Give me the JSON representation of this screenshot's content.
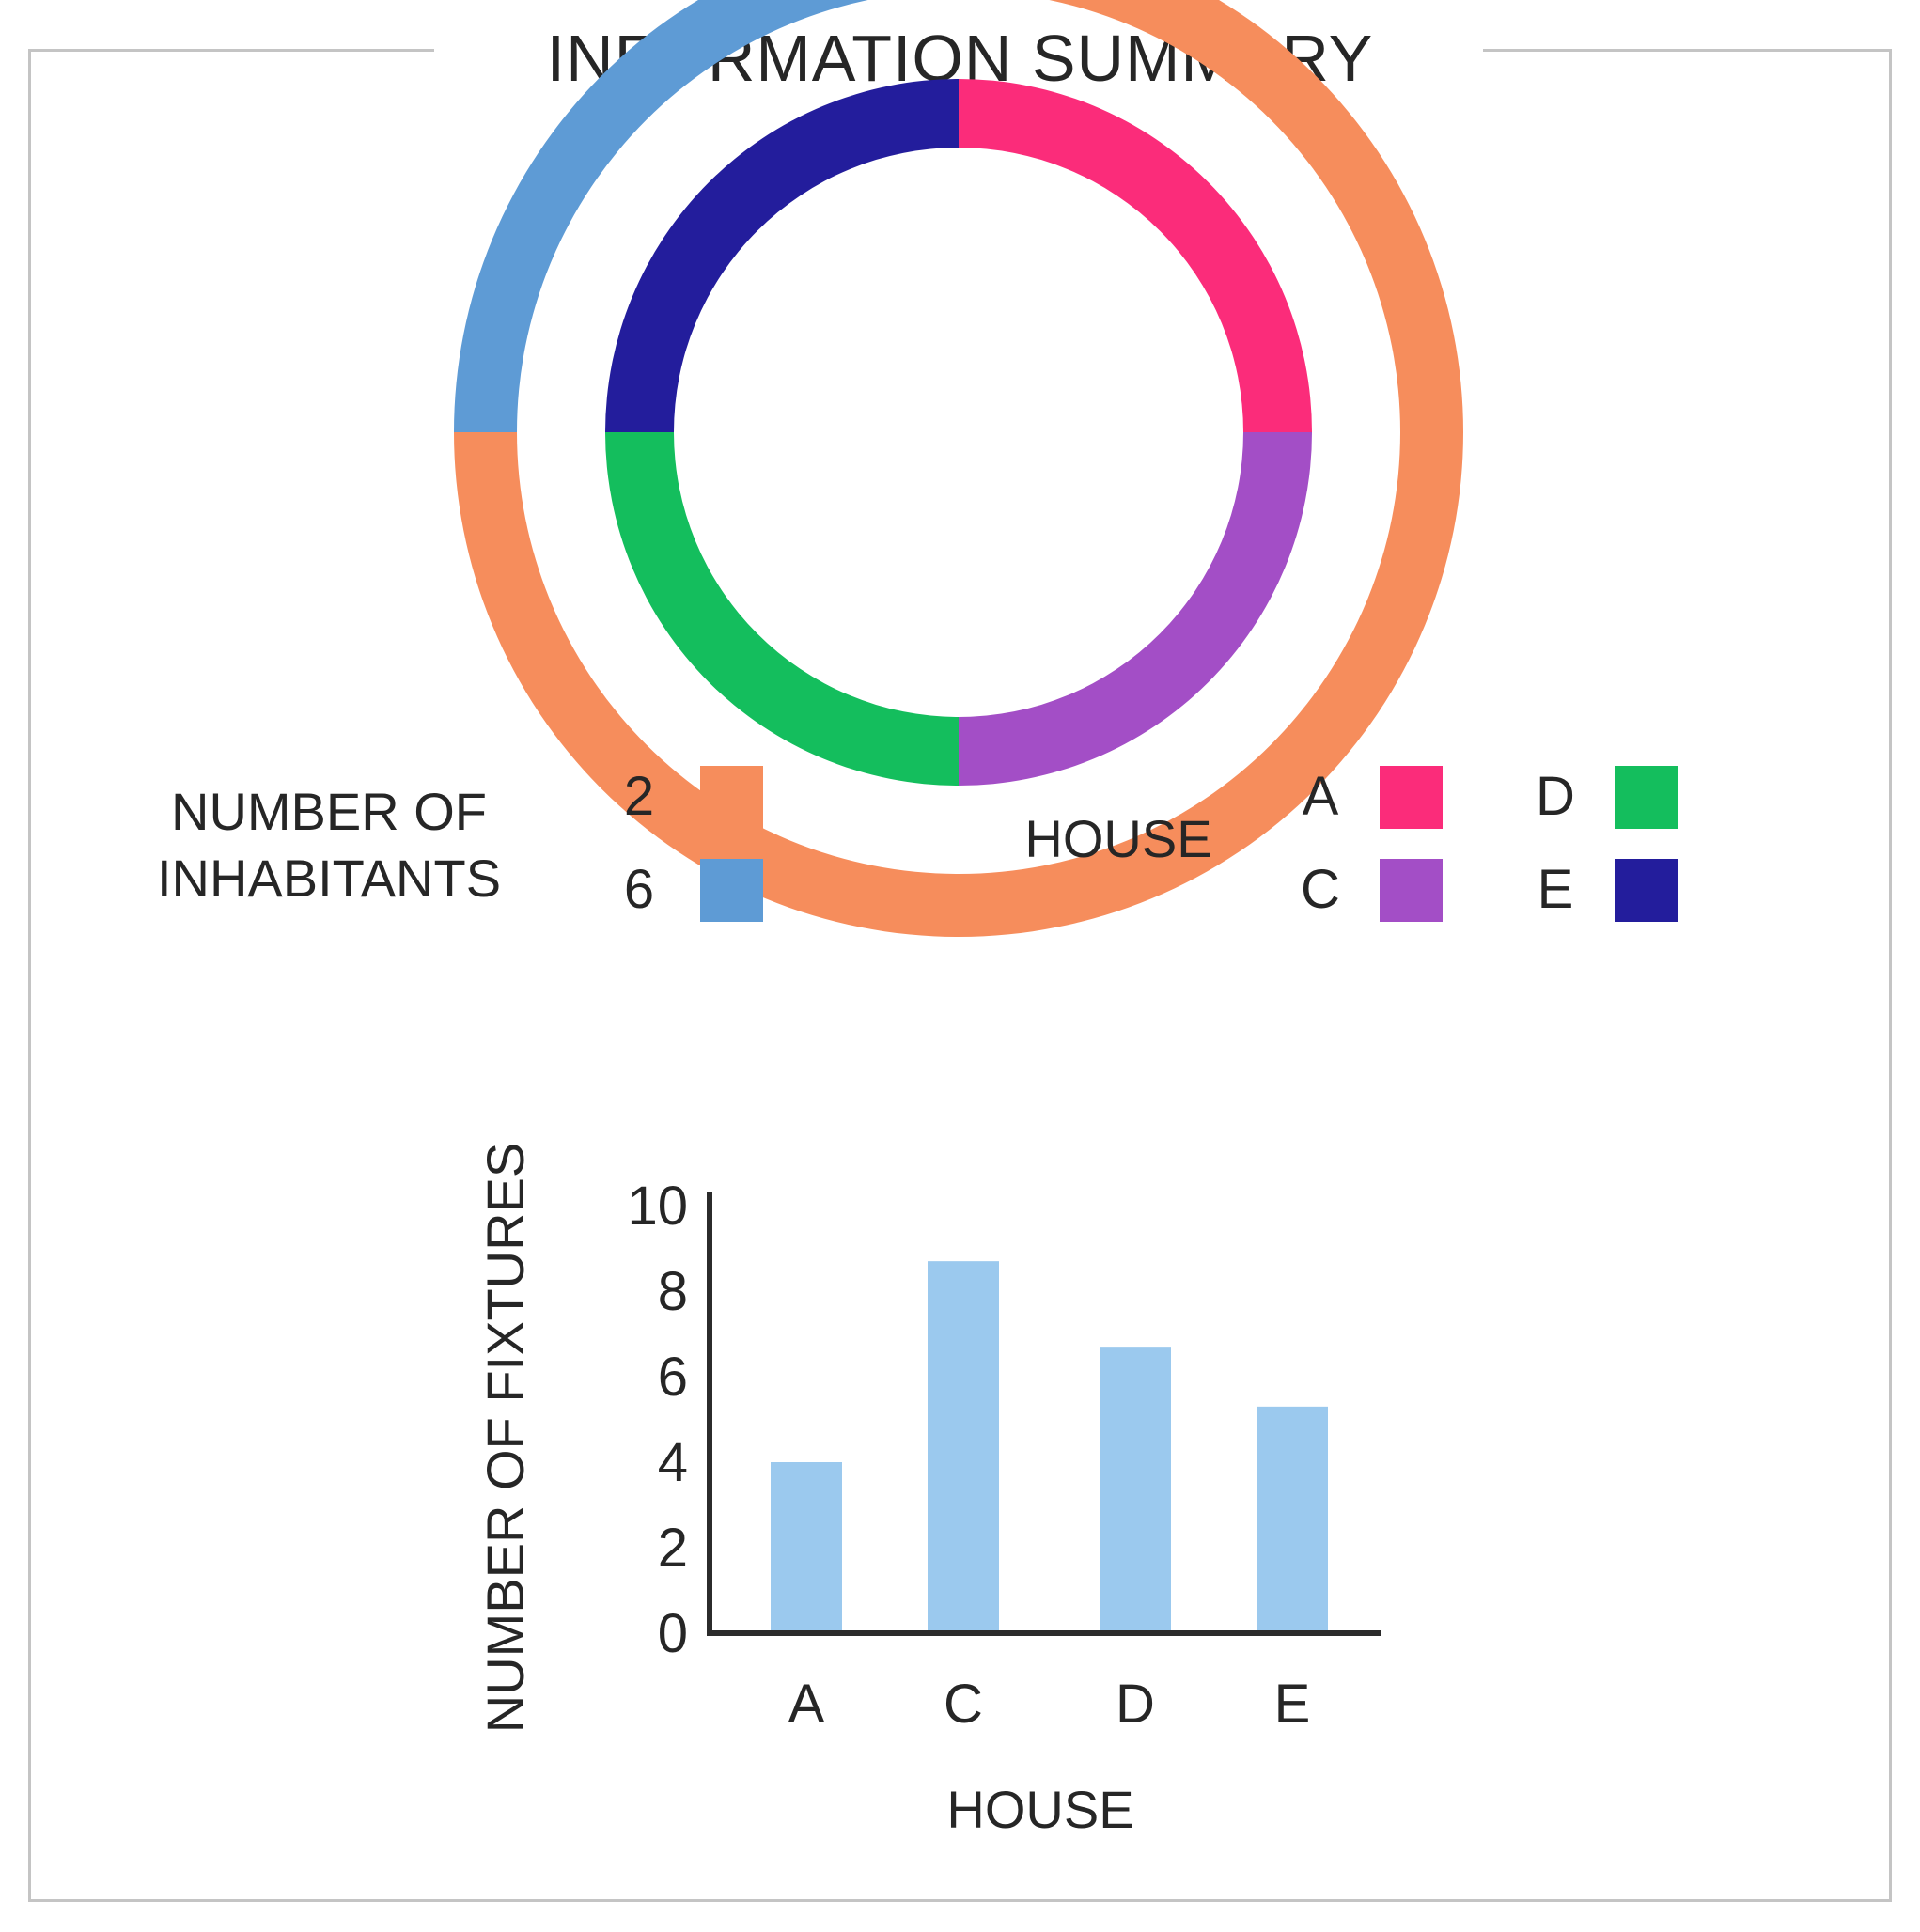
{
  "title": "INFORMATION SUMMARY",
  "chart_data": [
    {
      "type": "pie",
      "subtype": "nested-donut",
      "rings": [
        {
          "ring": "outer",
          "legend_title": "NUMBER OF INHABITANTS",
          "legend_title_lines": [
            "NUMBER OF",
            "INHABITANTS"
          ],
          "slices": [
            {
              "label": "2",
              "value": 3,
              "color": "#F68D5C"
            },
            {
              "label": "6",
              "value": 1,
              "color": "#5E9BD5"
            }
          ]
        },
        {
          "ring": "inner",
          "legend_title": "HOUSE",
          "slices": [
            {
              "label": "A",
              "value": 1,
              "color": "#FB2C7A"
            },
            {
              "label": "C",
              "value": 1,
              "color": "#A34EC6"
            },
            {
              "label": "D",
              "value": 1,
              "color": "#14BE5D"
            },
            {
              "label": "E",
              "value": 1,
              "color": "#231D9C"
            }
          ]
        }
      ]
    },
    {
      "type": "bar",
      "categories": [
        "A",
        "C",
        "D",
        "E"
      ],
      "values": [
        4,
        8.7,
        6.7,
        5.3
      ],
      "color": "#9BC9EE",
      "xlabel": "HOUSE",
      "ylabel": "NUMBER OF FIXTURES",
      "ylim": [
        0,
        10
      ],
      "yticks": [
        "0",
        "2",
        "4",
        "6",
        "8",
        "10"
      ],
      "grid": false
    }
  ]
}
